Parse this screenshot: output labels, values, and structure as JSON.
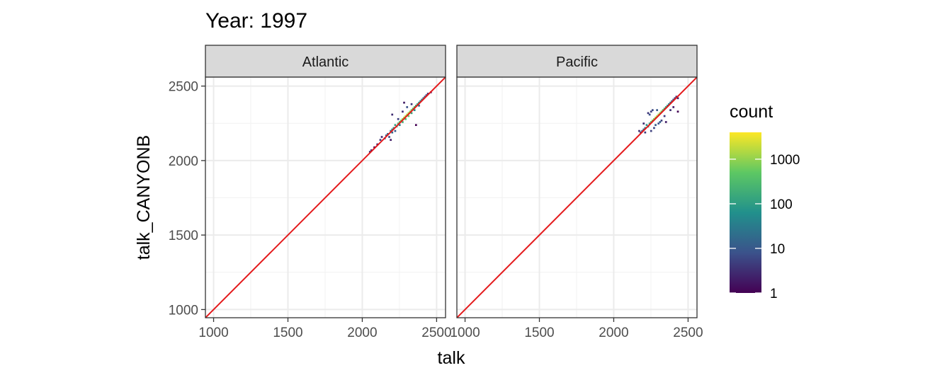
{
  "chart_data": {
    "type": "heatmap",
    "title": "Year: 1997",
    "xlabel": "talk",
    "ylabel": "talk_CANYONB",
    "xlim": [
      945,
      2560
    ],
    "ylim": [
      945,
      2560
    ],
    "x_ticks": [
      "1000",
      "1500",
      "2000",
      "2500"
    ],
    "y_ticks": [
      "1000",
      "1500",
      "2000",
      "2500"
    ],
    "grid": true,
    "reference_line": {
      "slope": 1,
      "intercept": 0,
      "color": "#e41a1c"
    },
    "legend": {
      "title": "count",
      "position": "right",
      "scale": "log10",
      "range": [
        1,
        4000
      ],
      "breaks": [
        "1",
        "10",
        "100",
        "1000"
      ],
      "colors": [
        "#440154",
        "#3b528b",
        "#21908c",
        "#5dc863",
        "#fde725"
      ]
    },
    "panels": [
      {
        "name": "Atlantic",
        "cells": [
          [
            2050,
            2060,
            3
          ],
          [
            2060,
            2070,
            2
          ],
          [
            2080,
            2090,
            1
          ],
          [
            2100,
            2110,
            2
          ],
          [
            2120,
            2140,
            4
          ],
          [
            2130,
            2160,
            3
          ],
          [
            2150,
            2150,
            8
          ],
          [
            2160,
            2170,
            12
          ],
          [
            2170,
            2180,
            20
          ],
          [
            2180,
            2160,
            6
          ],
          [
            2190,
            2200,
            35
          ],
          [
            2200,
            2190,
            15
          ],
          [
            2200,
            2210,
            60
          ],
          [
            2210,
            2220,
            80
          ],
          [
            2220,
            2200,
            10
          ],
          [
            2220,
            2240,
            120
          ],
          [
            2230,
            2230,
            150
          ],
          [
            2240,
            2250,
            250
          ],
          [
            2240,
            2280,
            5
          ],
          [
            2250,
            2240,
            40
          ],
          [
            2250,
            2260,
            400
          ],
          [
            2260,
            2270,
            700
          ],
          [
            2270,
            2260,
            200
          ],
          [
            2270,
            2280,
            1200
          ],
          [
            2280,
            2290,
            1500
          ],
          [
            2290,
            2280,
            300
          ],
          [
            2290,
            2300,
            1800
          ],
          [
            2300,
            2310,
            1600
          ],
          [
            2310,
            2300,
            500
          ],
          [
            2310,
            2320,
            1300
          ],
          [
            2320,
            2330,
            1000
          ],
          [
            2330,
            2320,
            150
          ],
          [
            2330,
            2340,
            700
          ],
          [
            2340,
            2350,
            500
          ],
          [
            2350,
            2340,
            60
          ],
          [
            2350,
            2360,
            300
          ],
          [
            2360,
            2370,
            200
          ],
          [
            2370,
            2380,
            120
          ],
          [
            2380,
            2370,
            20
          ],
          [
            2380,
            2390,
            80
          ],
          [
            2390,
            2400,
            50
          ],
          [
            2400,
            2410,
            30
          ],
          [
            2410,
            2420,
            20
          ],
          [
            2420,
            2430,
            10
          ],
          [
            2430,
            2440,
            6
          ],
          [
            2440,
            2450,
            3
          ],
          [
            2460,
            2460,
            1
          ],
          [
            2280,
            2390,
            2
          ],
          [
            2360,
            2240,
            1
          ],
          [
            2200,
            2310,
            3
          ],
          [
            2190,
            2140,
            2
          ],
          [
            2330,
            2380,
            4
          ],
          [
            2300,
            2360,
            8
          ],
          [
            2270,
            2330,
            3
          ]
        ]
      },
      {
        "name": "Pacific",
        "cells": [
          [
            2170,
            2200,
            3
          ],
          [
            2180,
            2190,
            5
          ],
          [
            2190,
            2200,
            10
          ],
          [
            2200,
            2210,
            20
          ],
          [
            2210,
            2220,
            40
          ],
          [
            2220,
            2240,
            70
          ],
          [
            2230,
            2230,
            90
          ],
          [
            2240,
            2250,
            150
          ],
          [
            2250,
            2260,
            300
          ],
          [
            2260,
            2270,
            600
          ],
          [
            2270,
            2280,
            900
          ],
          [
            2280,
            2290,
            1200
          ],
          [
            2290,
            2300,
            1500
          ],
          [
            2300,
            2310,
            1300
          ],
          [
            2310,
            2320,
            900
          ],
          [
            2320,
            2330,
            600
          ],
          [
            2330,
            2340,
            400
          ],
          [
            2340,
            2350,
            200
          ],
          [
            2350,
            2360,
            120
          ],
          [
            2360,
            2370,
            70
          ],
          [
            2370,
            2380,
            40
          ],
          [
            2380,
            2390,
            25
          ],
          [
            2390,
            2400,
            15
          ],
          [
            2400,
            2410,
            8
          ],
          [
            2410,
            2420,
            5
          ],
          [
            2420,
            2430,
            3
          ],
          [
            2430,
            2420,
            2
          ],
          [
            2250,
            2330,
            5
          ],
          [
            2240,
            2310,
            8
          ],
          [
            2230,
            2320,
            4
          ],
          [
            2260,
            2340,
            6
          ],
          [
            2290,
            2340,
            10
          ],
          [
            2270,
            2220,
            6
          ],
          [
            2300,
            2250,
            8
          ],
          [
            2320,
            2270,
            5
          ],
          [
            2340,
            2300,
            4
          ],
          [
            2350,
            2260,
            2
          ],
          [
            2210,
            2190,
            4
          ],
          [
            2200,
            2250,
            3
          ],
          [
            2380,
            2340,
            3
          ],
          [
            2400,
            2360,
            2
          ],
          [
            2430,
            2330,
            1
          ],
          [
            2250,
            2200,
            5
          ],
          [
            2280,
            2240,
            10
          ],
          [
            2310,
            2260,
            12
          ]
        ]
      }
    ]
  }
}
